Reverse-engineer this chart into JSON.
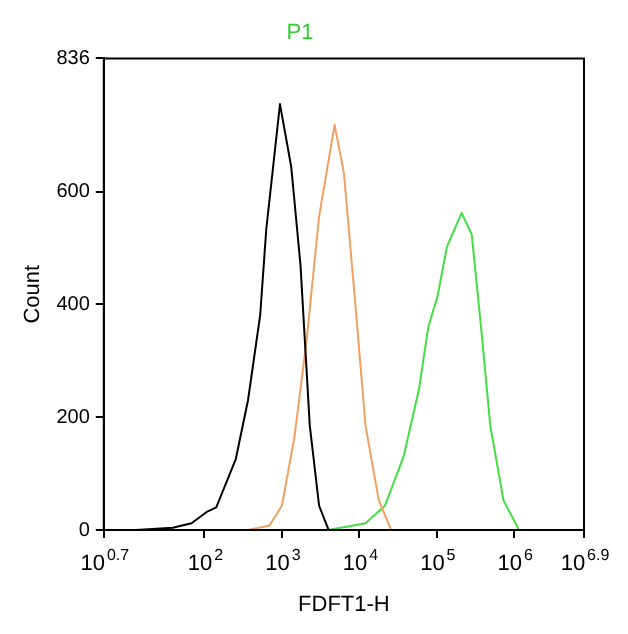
{
  "chart_data": {
    "type": "line",
    "title": "P1",
    "xlabel": "FDFT1-H",
    "ylabel": "Count",
    "log": "x",
    "marker": "none",
    "grid": false,
    "legend": false,
    "xlim": [
      5.012,
      7943282
    ],
    "ylim": [
      0,
      836
    ],
    "xticks": [
      {
        "value": 5.012,
        "label": "10$^{0.7}$"
      },
      {
        "value": 100,
        "label": "10$^{2}$"
      },
      {
        "value": 1000,
        "label": "10$^{3}$"
      },
      {
        "value": 10000,
        "label": "10$^{4}$"
      },
      {
        "value": 100000,
        "label": "10$^{5}$"
      },
      {
        "value": 1000000,
        "label": "10$^{6}$"
      },
      {
        "value": 7943282,
        "label": "10$^{6.9}$"
      }
    ],
    "yticks": [
      0,
      200,
      400,
      600,
      836
    ],
    "series": [
      {
        "color": "#000000",
        "x": [
          11,
          13,
          39,
          68,
          107,
          142,
          253,
          365,
          524,
          629,
          944,
          1318,
          1738,
          2290,
          3020,
          3980
        ],
        "values": [
          0,
          0,
          4,
          12,
          32,
          40,
          125,
          230,
          381,
          534,
          755,
          644,
          469,
          185,
          43,
          1
        ]
      },
      {
        "color": "#f0a060",
        "x": [
          363,
          692,
          1000,
          1445,
          2090,
          3020,
          4790,
          6310,
          9120,
          12000,
          17800,
          25700
        ],
        "values": [
          0,
          8,
          43,
          163,
          338,
          556,
          718,
          633,
          381,
          185,
          53,
          0
        ]
      },
      {
        "color": "#44dd44",
        "x": [
          3980,
          12000,
          21400,
          37200,
          58900,
          77600,
          102000,
          135000,
          209000,
          282000,
          372000,
          490000,
          724000,
          1150000
        ],
        "values": [
          0,
          12,
          43,
          130,
          250,
          360,
          414,
          502,
          562,
          524,
          360,
          185,
          53,
          0
        ]
      }
    ]
  }
}
